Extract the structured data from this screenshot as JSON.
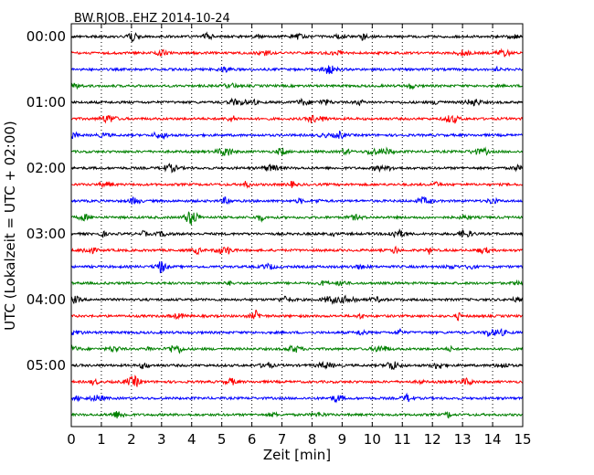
{
  "chart_data": {
    "type": "line",
    "title": "BW.RJOB..EHZ 2014-10-24",
    "xlabel": "Zeit  [min]",
    "ylabel": "UTC (Lokalzeit = UTC + 02:00)",
    "xlim": [
      0,
      15
    ],
    "x_ticks": [
      "0",
      "1",
      "2",
      "3",
      "4",
      "5",
      "6",
      "7",
      "8",
      "9",
      "10",
      "11",
      "12",
      "13",
      "14",
      "15"
    ],
    "y_tick_labels": [
      "00:00",
      "01:00",
      "02:00",
      "03:00",
      "04:00",
      "05:00"
    ],
    "grid": {
      "x": "dotted",
      "y": false
    },
    "trace_minutes": 15,
    "trace_count": 24,
    "trace_colors": [
      "#000000",
      "#ff0000",
      "#0000ff",
      "#008000"
    ],
    "trace_start_times": [
      "00:00",
      "00:15",
      "00:30",
      "00:45",
      "01:00",
      "01:15",
      "01:30",
      "01:45",
      "02:00",
      "02:15",
      "02:30",
      "02:45",
      "03:00",
      "03:15",
      "03:30",
      "03:45",
      "04:00",
      "04:15",
      "04:30",
      "04:45",
      "05:00",
      "05:15",
      "05:30",
      "05:45"
    ]
  }
}
